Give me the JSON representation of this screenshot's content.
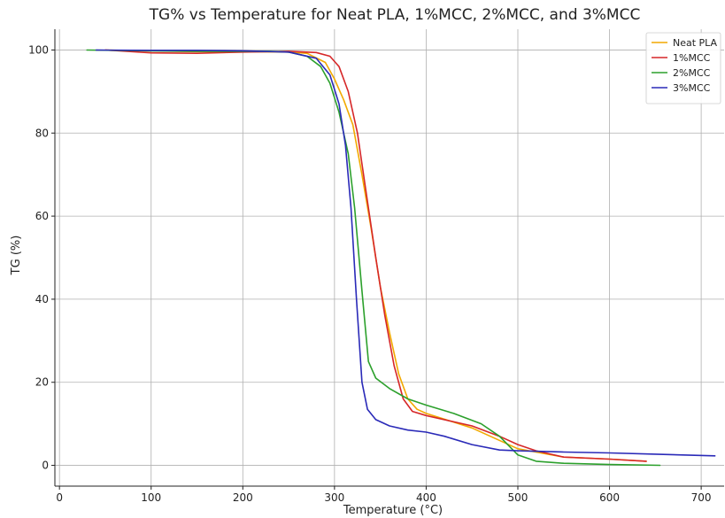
{
  "chart_data": {
    "type": "line",
    "title": "TG% vs Temperature for Neat PLA, 1%MCC, 2%MCC, and 3%MCC",
    "xlabel": "Temperature (°C)",
    "ylabel": "TG (%)",
    "xlim": [
      -5,
      725
    ],
    "ylim": [
      -5,
      105
    ],
    "xticks": [
      0,
      100,
      200,
      300,
      400,
      500,
      600,
      700
    ],
    "yticks": [
      0,
      20,
      40,
      60,
      80,
      100
    ],
    "xtick_labels": [
      "0",
      "100",
      "200",
      "300",
      "400",
      "500",
      "600",
      "700"
    ],
    "ytick_labels": [
      "0",
      "20",
      "40",
      "60",
      "80",
      "100"
    ],
    "grid": true,
    "legend_position": "top-right",
    "series": [
      {
        "name": "Neat PLA",
        "color": "#f2a900",
        "x": [
          50,
          100,
          150,
          200,
          250,
          270,
          290,
          300,
          310,
          320,
          330,
          340,
          350,
          360,
          370,
          380,
          390,
          400,
          450,
          500,
          550,
          600,
          640
        ],
        "y": [
          100,
          99.8,
          99.6,
          99.6,
          99.5,
          99.2,
          97,
          93,
          88,
          82,
          70,
          57,
          43,
          32,
          22,
          16,
          13.5,
          12.5,
          9,
          4,
          2,
          1.5,
          1
        ]
      },
      {
        "name": "1%MCC",
        "color": "#d62728",
        "x": [
          50,
          100,
          150,
          200,
          250,
          280,
          295,
          305,
          315,
          325,
          335,
          345,
          355,
          365,
          375,
          385,
          400,
          450,
          480,
          500,
          520,
          550,
          600,
          640
        ],
        "y": [
          100,
          99.3,
          99.2,
          99.5,
          99.7,
          99.4,
          98.5,
          96,
          90,
          80,
          65,
          50,
          36,
          24,
          16,
          13,
          12,
          9.5,
          7,
          5,
          3.5,
          2,
          1.5,
          1
        ]
      },
      {
        "name": "2%MCC",
        "color": "#2ca02c",
        "x": [
          30,
          100,
          150,
          200,
          230,
          250,
          270,
          285,
          295,
          305,
          315,
          322,
          330,
          337,
          345,
          360,
          380,
          400,
          430,
          460,
          480,
          500,
          520,
          550,
          600,
          655
        ],
        "y": [
          100,
          99.8,
          99.7,
          99.7,
          99.7,
          99.5,
          98.5,
          96,
          92,
          85,
          75,
          62,
          42,
          25,
          21,
          18.5,
          16,
          14.5,
          12.5,
          10,
          7,
          2.5,
          1,
          0.5,
          0.2,
          0
        ]
      },
      {
        "name": "3%MCC",
        "color": "#2a2ab8",
        "x": [
          40,
          100,
          150,
          200,
          250,
          280,
          295,
          305,
          312,
          318,
          324,
          330,
          336,
          345,
          360,
          380,
          400,
          420,
          450,
          480,
          500,
          550,
          600,
          650,
          715
        ],
        "y": [
          100,
          99.9,
          99.9,
          99.8,
          99.5,
          98,
          94,
          87,
          77,
          62,
          40,
          20,
          13.5,
          11,
          9.5,
          8.5,
          8,
          7,
          5,
          3.7,
          3.5,
          3.2,
          3,
          2.7,
          2.3
        ]
      }
    ]
  }
}
